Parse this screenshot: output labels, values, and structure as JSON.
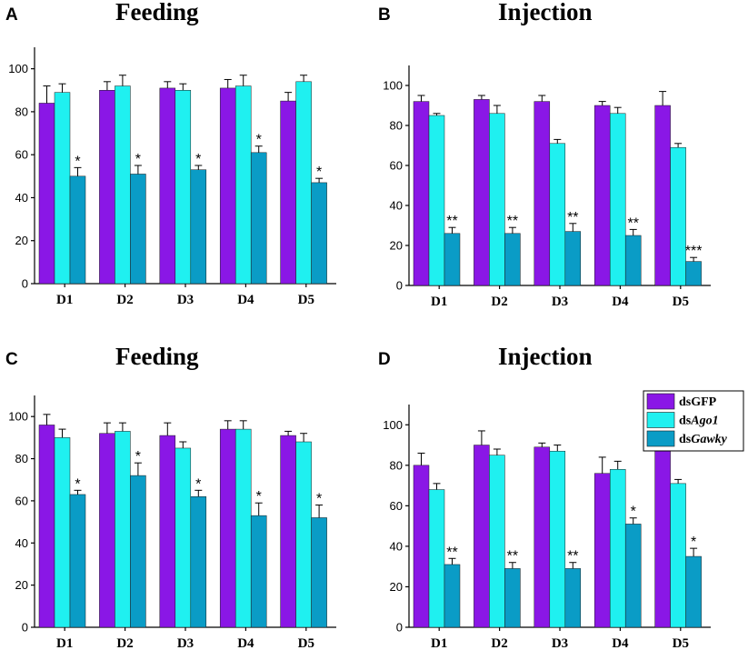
{
  "colors": {
    "dsGFP": "#8a17e6",
    "dsAgo1": "#1ff0f0",
    "dsGawky": "#0a9cc6"
  },
  "legend": [
    {
      "prefix": "ds",
      "name": "GFP",
      "italic": false,
      "color_key": "dsGFP"
    },
    {
      "prefix": "ds",
      "name": "Ago1",
      "italic": true,
      "color_key": "dsAgo1"
    },
    {
      "prefix": "ds",
      "name": "Gawky",
      "italic": true,
      "color_key": "dsGawky"
    }
  ],
  "chart_data": [
    {
      "panel": "A",
      "title": "Feeding",
      "type": "bar",
      "categories": [
        "D1",
        "D2",
        "D3",
        "D4",
        "D5"
      ],
      "ylim": [
        0,
        110
      ],
      "yticks": [
        0,
        20,
        40,
        60,
        80,
        100
      ],
      "series": [
        {
          "name": "dsGFP",
          "values": [
            84,
            90,
            91,
            91,
            85
          ],
          "errors": [
            8,
            4,
            3,
            4,
            4
          ]
        },
        {
          "name": "dsAgo1",
          "values": [
            89,
            92,
            90,
            92,
            94
          ],
          "errors": [
            4,
            5,
            3,
            5,
            3
          ]
        },
        {
          "name": "dsGawky",
          "values": [
            50,
            51,
            53,
            61,
            47
          ],
          "errors": [
            4,
            4,
            2,
            3,
            2
          ]
        }
      ],
      "significance": [
        "*",
        "*",
        "*",
        "*",
        "*"
      ]
    },
    {
      "panel": "B",
      "title": "Injection",
      "type": "bar",
      "categories": [
        "D1",
        "D2",
        "D3",
        "D4",
        "D5"
      ],
      "ylim": [
        0,
        110
      ],
      "yticks": [
        0,
        20,
        40,
        60,
        80,
        100
      ],
      "series": [
        {
          "name": "dsGFP",
          "values": [
            92,
            93,
            92,
            90,
            90
          ],
          "errors": [
            3,
            2,
            3,
            2,
            7
          ]
        },
        {
          "name": "dsAgo1",
          "values": [
            85,
            86,
            71,
            86,
            69
          ],
          "errors": [
            1,
            4,
            2,
            3,
            2
          ]
        },
        {
          "name": "dsGawky",
          "values": [
            26,
            26,
            27,
            25,
            12
          ],
          "errors": [
            3,
            3,
            4,
            3,
            2
          ]
        }
      ],
      "significance": [
        "**",
        "**",
        "**",
        "**",
        "***"
      ]
    },
    {
      "panel": "C",
      "title": "Feeding",
      "type": "bar",
      "categories": [
        "D1",
        "D2",
        "D3",
        "D4",
        "D5"
      ],
      "ylim": [
        0,
        110
      ],
      "yticks": [
        0,
        20,
        40,
        60,
        80,
        100
      ],
      "series": [
        {
          "name": "dsGFP",
          "values": [
            96,
            92,
            91,
            94,
            91
          ],
          "errors": [
            5,
            5,
            6,
            4,
            2
          ]
        },
        {
          "name": "dsAgo1",
          "values": [
            90,
            93,
            85,
            94,
            88
          ],
          "errors": [
            4,
            4,
            3,
            4,
            4
          ]
        },
        {
          "name": "dsGawky",
          "values": [
            63,
            72,
            62,
            53,
            52
          ],
          "errors": [
            2,
            6,
            3,
            6,
            6
          ]
        }
      ],
      "significance": [
        "*",
        "*",
        "*",
        "*",
        "*"
      ]
    },
    {
      "panel": "D",
      "title": "Injection",
      "type": "bar",
      "categories": [
        "D1",
        "D2",
        "D3",
        "D4",
        "D5"
      ],
      "ylim": [
        0,
        110
      ],
      "yticks": [
        0,
        20,
        40,
        60,
        80,
        100
      ],
      "series": [
        {
          "name": "dsGFP",
          "values": [
            80,
            90,
            89,
            76,
            87
          ],
          "errors": [
            6,
            7,
            2,
            8,
            8
          ]
        },
        {
          "name": "dsAgo1",
          "values": [
            68,
            85,
            87,
            78,
            71
          ],
          "errors": [
            3,
            3,
            3,
            4,
            2
          ]
        },
        {
          "name": "dsGawky",
          "values": [
            31,
            29,
            29,
            51,
            35
          ],
          "errors": [
            3,
            3,
            3,
            3,
            4
          ]
        }
      ],
      "significance": [
        "**",
        "**",
        "**",
        "*",
        "*"
      ]
    }
  ]
}
